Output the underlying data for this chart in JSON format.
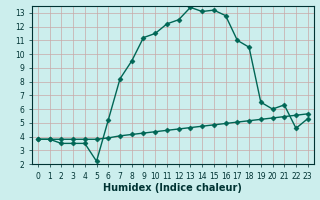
{
  "xlabel": "Humidex (Indice chaleur)",
  "xlim": [
    -0.5,
    23.5
  ],
  "ylim": [
    2,
    13.5
  ],
  "xticks": [
    0,
    1,
    2,
    3,
    4,
    5,
    6,
    7,
    8,
    9,
    10,
    11,
    12,
    13,
    14,
    15,
    16,
    17,
    18,
    19,
    20,
    21,
    22,
    23
  ],
  "yticks": [
    2,
    3,
    4,
    5,
    6,
    7,
    8,
    9,
    10,
    11,
    12,
    13
  ],
  "background_color": "#cceeed",
  "grid_color": "#c8a8a8",
  "line_color": "#006655",
  "curve1_x": [
    0,
    1,
    2,
    3,
    4,
    5,
    6,
    7,
    8,
    9,
    10,
    11,
    12,
    13,
    14,
    15,
    16,
    17,
    18,
    19,
    20,
    21,
    22,
    23
  ],
  "curve1_y": [
    3.8,
    3.8,
    3.5,
    3.5,
    3.5,
    2.2,
    5.2,
    8.2,
    9.5,
    11.2,
    11.5,
    12.2,
    12.5,
    13.4,
    13.1,
    13.2,
    12.8,
    11.0,
    10.5,
    6.5,
    6.0,
    6.3,
    4.6,
    5.3
  ],
  "curve2_x": [
    0,
    1,
    2,
    3,
    4,
    5,
    6,
    7,
    8,
    9,
    10,
    11,
    12,
    13,
    14,
    15,
    16,
    17,
    18,
    19,
    20,
    21,
    22,
    23
  ],
  "curve2_y": [
    3.8,
    3.8,
    3.8,
    3.8,
    3.8,
    3.8,
    3.9,
    4.05,
    4.15,
    4.25,
    4.35,
    4.45,
    4.55,
    4.65,
    4.75,
    4.85,
    4.95,
    5.05,
    5.15,
    5.25,
    5.35,
    5.45,
    5.55,
    5.65
  ],
  "marker": "D",
  "marker_size": 2.5,
  "line_width": 1.0,
  "tick_fontsize": 5.5,
  "xlabel_fontsize": 7,
  "tick_color": "#003333",
  "spine_color": "#003333"
}
